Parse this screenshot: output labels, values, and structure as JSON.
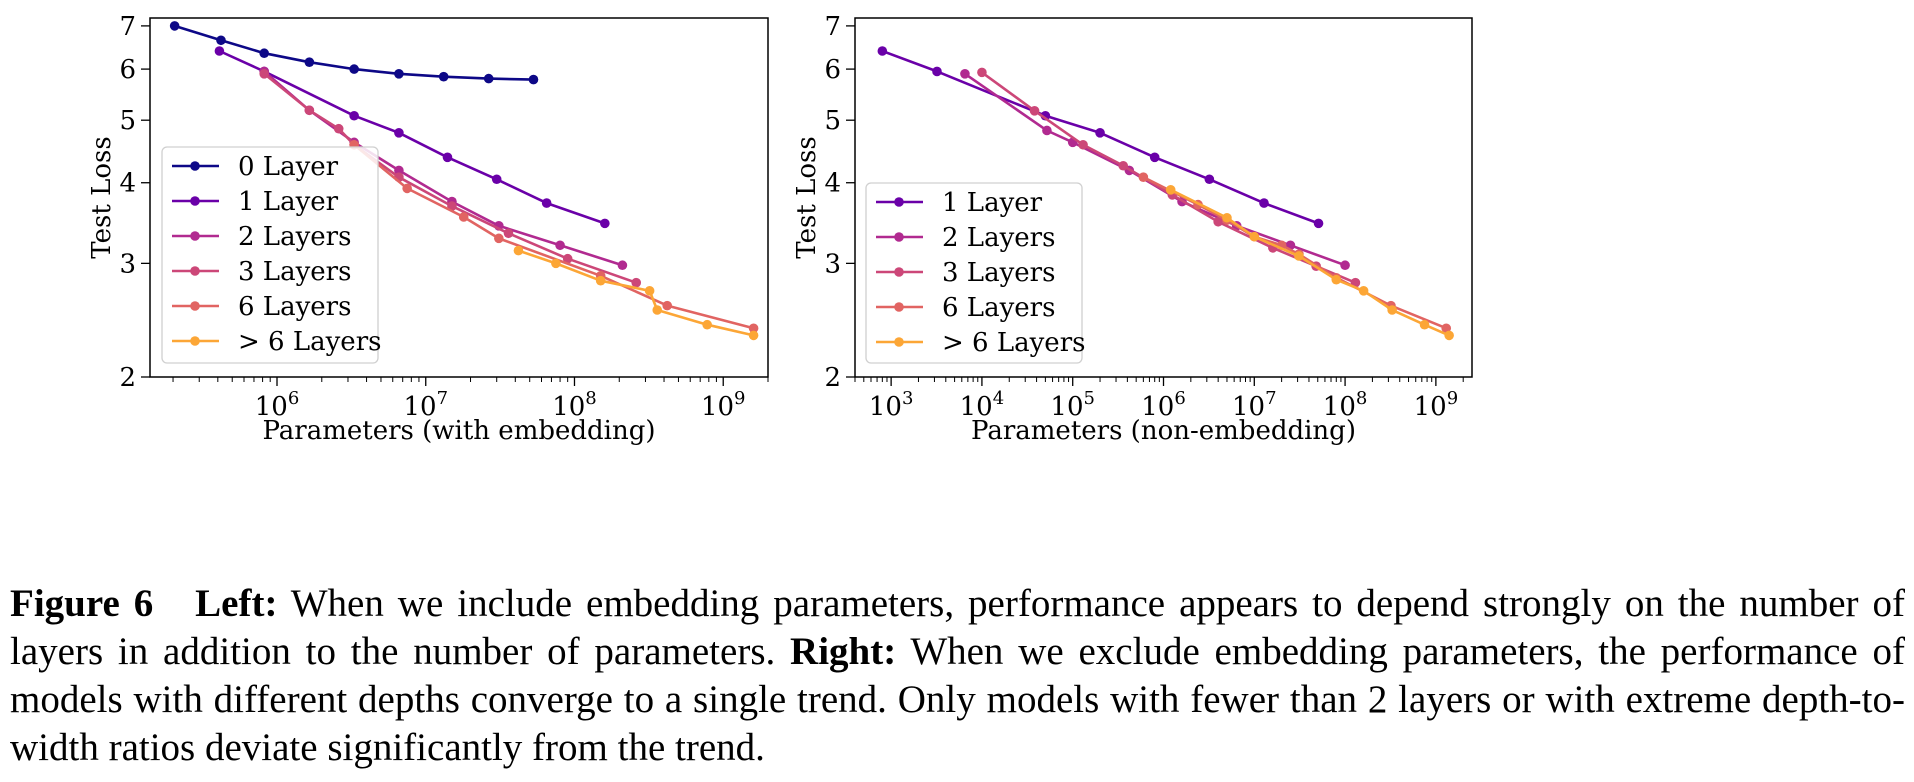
{
  "chart_data": [
    {
      "type": "line",
      "xlabel": "Parameters (with embedding)",
      "ylabel": "Test Loss",
      "xscale": "log",
      "yscale": "log",
      "xlim": [
        140000,
        2000000000
      ],
      "ylim": [
        2,
        7.2
      ],
      "xticks": [
        {
          "value": 1000000,
          "base": "10",
          "exp": "6"
        },
        {
          "value": 10000000,
          "base": "10",
          "exp": "7"
        },
        {
          "value": 100000000,
          "base": "10",
          "exp": "8"
        },
        {
          "value": 1000000000,
          "base": "10",
          "exp": "9"
        }
      ],
      "yticks": [
        {
          "value": 2,
          "label": "2"
        },
        {
          "value": 3,
          "label": "3"
        },
        {
          "value": 4,
          "label": "4"
        },
        {
          "value": 5,
          "label": "5"
        },
        {
          "value": 6,
          "label": "6"
        },
        {
          "value": 7,
          "label": "7"
        }
      ],
      "legend_position": "center-left",
      "series": [
        {
          "name": "0 Layer",
          "color": "#0d0887",
          "x": [
            205000,
            420000,
            820000,
            1650000,
            3300000,
            6600000,
            13200000,
            26500000,
            53000000
          ],
          "y": [
            7.0,
            6.65,
            6.35,
            6.15,
            6.0,
            5.9,
            5.84,
            5.8,
            5.78
          ]
        },
        {
          "name": "1 Layer",
          "color": "#6a00a8",
          "x": [
            410000,
            820000,
            3300000,
            6600000,
            14000000,
            30000000,
            65000000,
            160000000
          ],
          "y": [
            6.4,
            5.95,
            5.08,
            4.78,
            4.38,
            4.05,
            3.72,
            3.46
          ]
        },
        {
          "name": "2 Layers",
          "color": "#b12a90",
          "x": [
            820000,
            1650000,
            3300000,
            6600000,
            15000000,
            31000000,
            80000000,
            210000000
          ],
          "y": [
            5.95,
            5.18,
            4.62,
            4.18,
            3.74,
            3.43,
            3.2,
            2.98
          ]
        },
        {
          "name": "3 Layers",
          "color": "#cc4778",
          "x": [
            820000,
            1650000,
            2600000,
            3300000,
            6600000,
            15000000,
            36000000,
            90000000,
            260000000
          ],
          "y": [
            5.9,
            5.18,
            4.85,
            4.58,
            4.08,
            3.68,
            3.34,
            3.05,
            2.8
          ]
        },
        {
          "name": "6 Layers",
          "color": "#e16462",
          "x": [
            3300000,
            7500000,
            18000000,
            31000000,
            150000000,
            420000000,
            1600000000
          ],
          "y": [
            4.58,
            3.92,
            3.54,
            3.28,
            2.87,
            2.58,
            2.38
          ]
        },
        {
          "name": "> 6 Layers",
          "color": "#fca636",
          "x": [
            42000000,
            75000000,
            150000000,
            320000000,
            360000000,
            780000000,
            1600000000
          ],
          "y": [
            3.14,
            3.0,
            2.82,
            2.72,
            2.54,
            2.41,
            2.32
          ]
        }
      ]
    },
    {
      "type": "line",
      "xlabel": "Parameters (non-embedding)",
      "ylabel": "Test Loss",
      "xscale": "log",
      "yscale": "log",
      "xlim": [
        400,
        2500000000
      ],
      "ylim": [
        2,
        7.2
      ],
      "xticks": [
        {
          "value": 1000,
          "base": "10",
          "exp": "3"
        },
        {
          "value": 10000,
          "base": "10",
          "exp": "4"
        },
        {
          "value": 100000,
          "base": "10",
          "exp": "5"
        },
        {
          "value": 1000000,
          "base": "10",
          "exp": "6"
        },
        {
          "value": 10000000,
          "base": "10",
          "exp": "7"
        },
        {
          "value": 100000000,
          "base": "10",
          "exp": "8"
        },
        {
          "value": 1000000000,
          "base": "10",
          "exp": "9"
        }
      ],
      "yticks": [
        {
          "value": 2,
          "label": "2"
        },
        {
          "value": 3,
          "label": "3"
        },
        {
          "value": 4,
          "label": "4"
        },
        {
          "value": 5,
          "label": "5"
        },
        {
          "value": 6,
          "label": "6"
        },
        {
          "value": 7,
          "label": "7"
        }
      ],
      "legend_position": "center-left",
      "series": [
        {
          "name": "1 Layer",
          "color": "#6a00a8",
          "x": [
            800,
            3200,
            50000,
            200000,
            800000,
            3200000,
            12800000,
            51000000
          ],
          "y": [
            6.4,
            5.95,
            5.08,
            4.78,
            4.38,
            4.05,
            3.72,
            3.46
          ]
        },
        {
          "name": "2 Layers",
          "color": "#b12a90",
          "x": [
            6500,
            52000,
            100000,
            420000,
            1600000,
            6400000,
            25000000,
            100000000
          ],
          "y": [
            5.9,
            4.82,
            4.62,
            4.18,
            3.74,
            3.43,
            3.2,
            2.98
          ]
        },
        {
          "name": "3 Layers",
          "color": "#cc4778",
          "x": [
            10000,
            38000,
            130000,
            360000,
            1250000,
            4000000,
            16000000,
            48000000,
            130000000
          ],
          "y": [
            5.93,
            5.17,
            4.58,
            4.25,
            3.83,
            3.48,
            3.17,
            2.97,
            2.8
          ]
        },
        {
          "name": "6 Layers",
          "color": "#e16462",
          "x": [
            600000,
            2400000,
            5000000,
            10000000,
            20000000,
            31000000,
            80000000,
            320000000,
            1300000000
          ],
          "y": [
            4.08,
            3.7,
            3.5,
            3.3,
            3.2,
            3.1,
            2.85,
            2.58,
            2.38
          ]
        },
        {
          "name": "> 6 Layers",
          "color": "#fca636",
          "x": [
            1200000,
            5000000,
            10000000,
            31000000,
            80000000,
            160000000,
            330000000,
            750000000,
            1400000000
          ],
          "y": [
            3.9,
            3.53,
            3.3,
            3.08,
            2.83,
            2.72,
            2.54,
            2.41,
            2.32
          ]
        }
      ]
    }
  ],
  "caption": {
    "label": "Figure 6",
    "left_head": "Left:",
    "left_text": "When we include embedding parameters, performance appears to depend strongly on the number of layers in addition to the number of parameters.",
    "right_head": "Right:",
    "right_text": "When we exclude embedding parameters, the performance of models with different depths converge to a single trend. Only models with fewer than 2 layers or with extreme depth-to-width ratios deviate significantly from the trend."
  }
}
